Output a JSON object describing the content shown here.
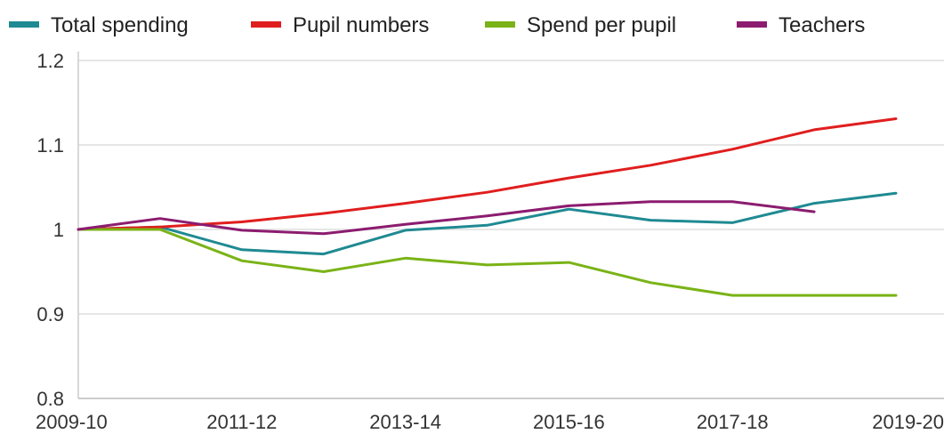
{
  "chart_data": {
    "type": "line",
    "title": "",
    "xlabel": "",
    "ylabel": "",
    "x": [
      "2009-10",
      "2010-11",
      "2011-12",
      "2012-13",
      "2013-14",
      "2014-15",
      "2015-16",
      "2016-17",
      "2017-18",
      "2018-19",
      "2019-20"
    ],
    "x_tick_labels": [
      "2009-10",
      "2011-12",
      "2013-14",
      "2015-16",
      "2017-18",
      "2019-20"
    ],
    "y_tick_labels": [
      "0.8",
      "0.9",
      "1",
      "1.1",
      "1.2"
    ],
    "y_ticks": [
      0.8,
      0.9,
      1.0,
      1.1,
      1.2
    ],
    "ylim": [
      0.8,
      1.2
    ],
    "grid": true,
    "legend_position": "top",
    "series": [
      {
        "name": "Total spending",
        "color": "#1f8a92",
        "values": [
          1.0,
          1.003,
          0.976,
          0.971,
          0.999,
          1.005,
          1.024,
          1.011,
          1.008,
          1.031,
          1.043
        ]
      },
      {
        "name": "Pupil numbers",
        "color": "#e01e1e",
        "values": [
          1.0,
          1.003,
          1.009,
          1.019,
          1.031,
          1.044,
          1.061,
          1.076,
          1.095,
          1.118,
          1.131
        ]
      },
      {
        "name": "Spend per pupil",
        "color": "#7ab317",
        "values": [
          1.0,
          1.0,
          0.963,
          0.95,
          0.966,
          0.958,
          0.961,
          0.937,
          0.922,
          0.922,
          0.922
        ]
      },
      {
        "name": "Teachers",
        "color": "#8b1c6f",
        "values": [
          1.0,
          1.013,
          0.999,
          0.995,
          1.006,
          1.016,
          1.028,
          1.033,
          1.033,
          1.021,
          null
        ]
      }
    ]
  }
}
